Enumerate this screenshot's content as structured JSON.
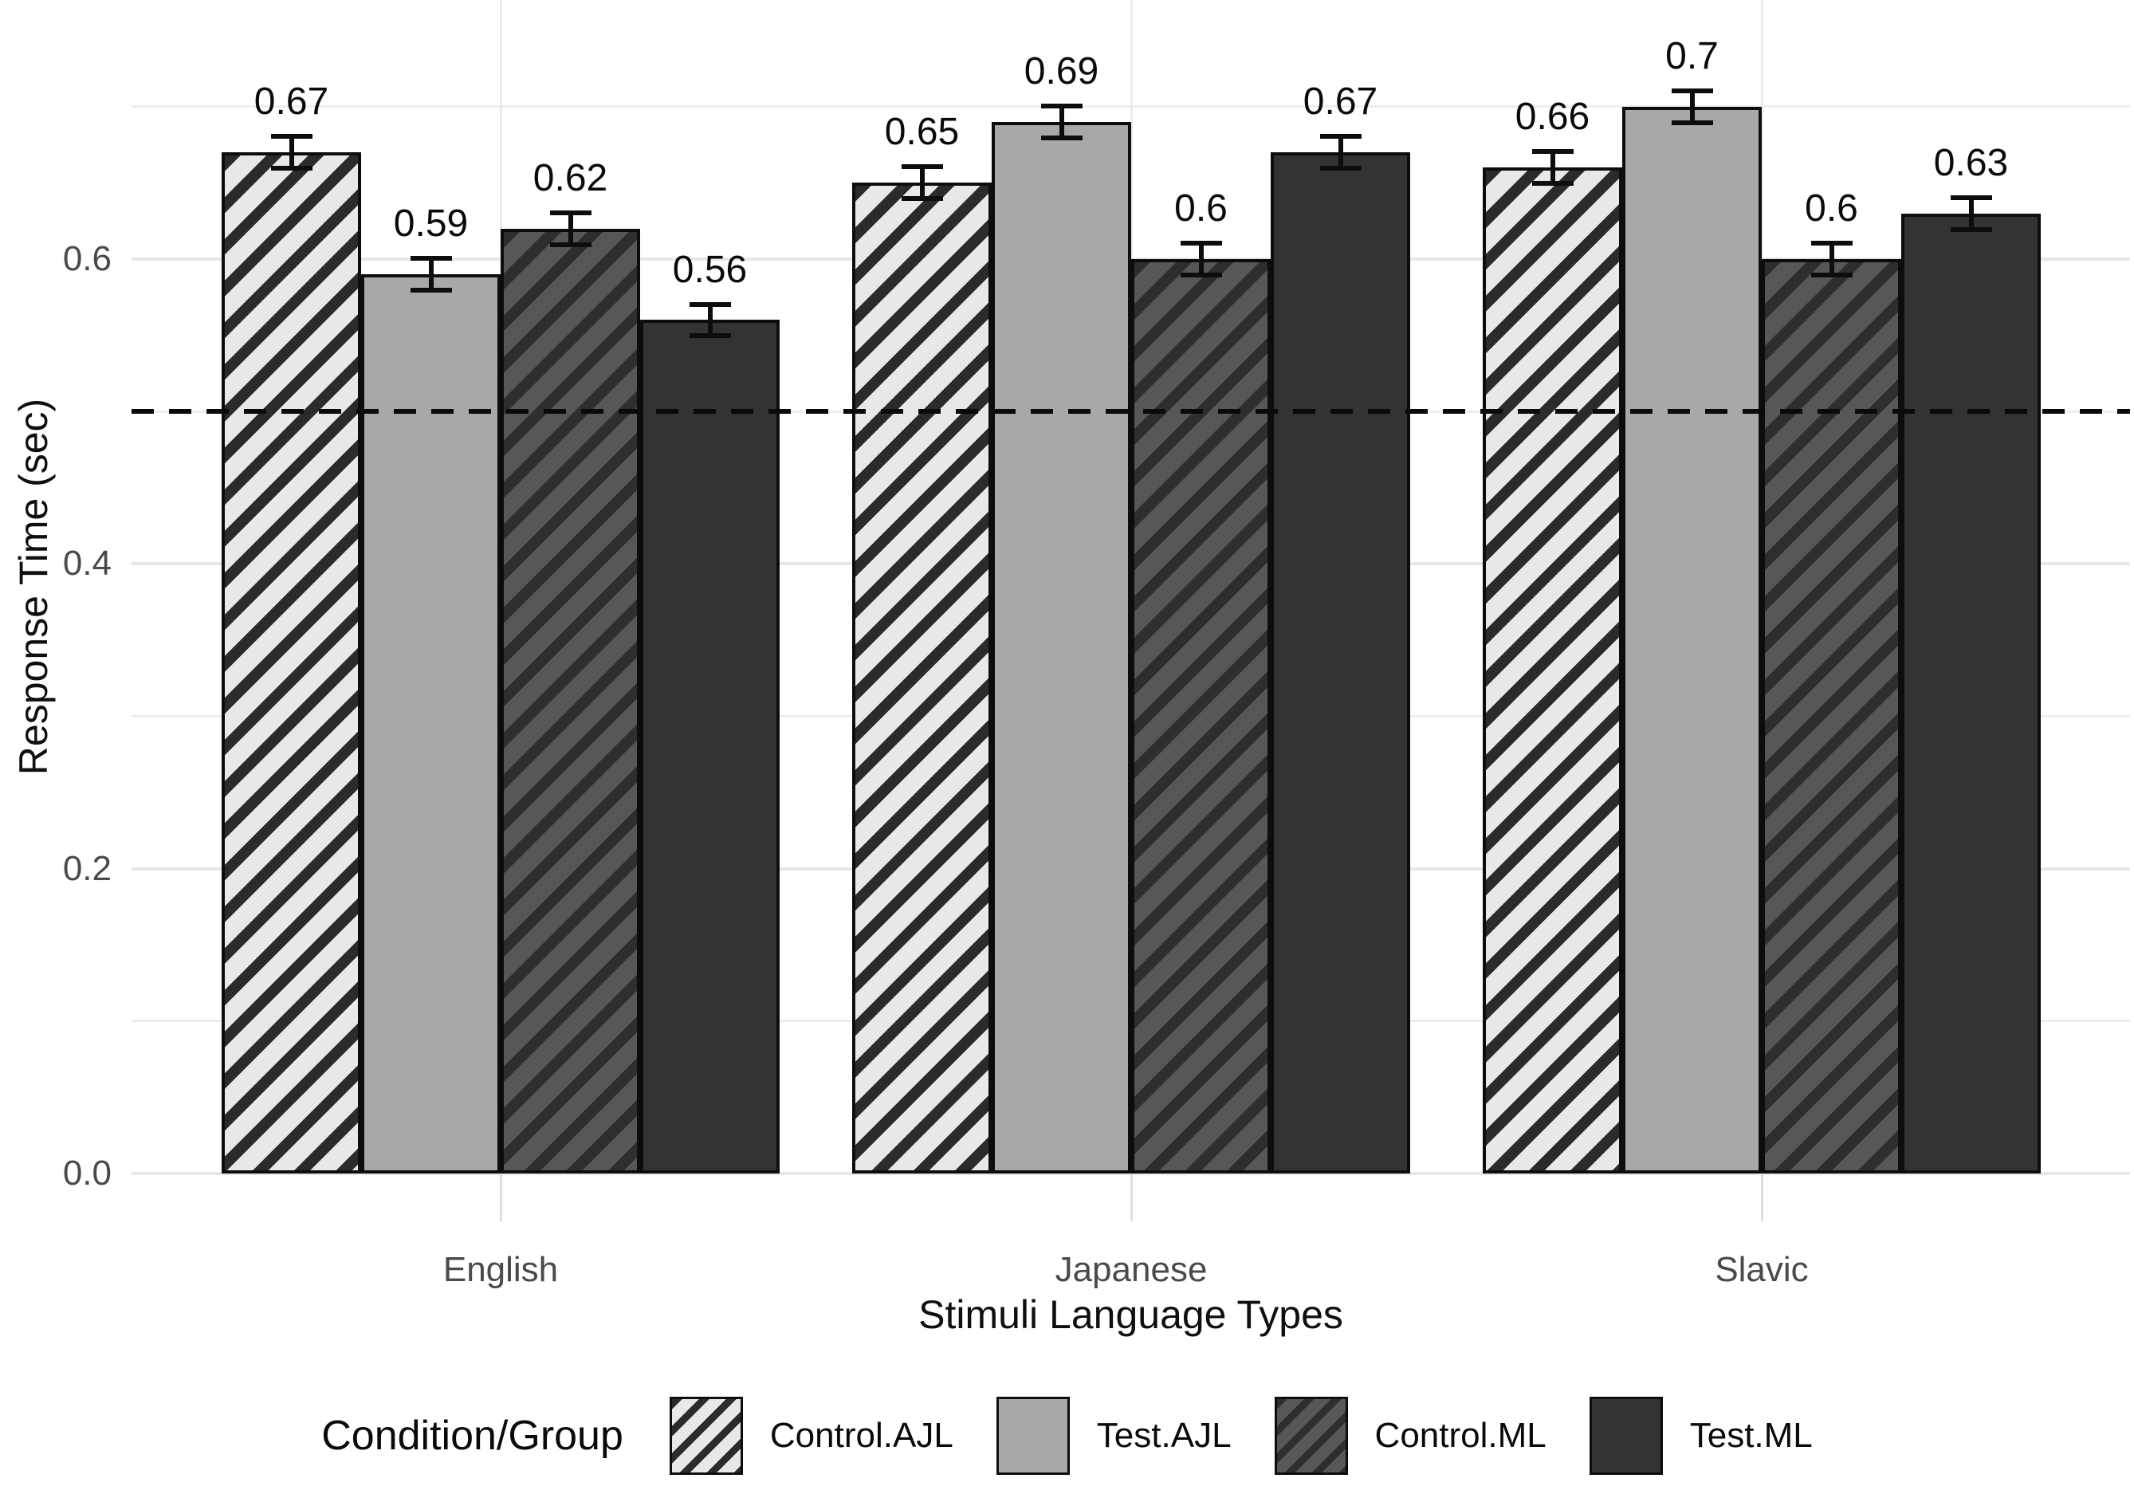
{
  "chart_data": {
    "type": "bar",
    "title": "",
    "xlabel": "Stimuli Language Types",
    "ylabel": "Response Time (sec)",
    "categories": [
      "English",
      "Japanese",
      "Slavic"
    ],
    "series": [
      {
        "name": "Control.AJL",
        "pattern": "stripe-light",
        "values": [
          0.67,
          0.65,
          0.66
        ],
        "labels": [
          "0.67",
          "0.65",
          "0.66"
        ]
      },
      {
        "name": "Test.AJL",
        "pattern": "solid-light",
        "values": [
          0.59,
          0.69,
          0.7
        ],
        "labels": [
          "0.59",
          "0.69",
          "0.7"
        ]
      },
      {
        "name": "Control.ML",
        "pattern": "stripe-dark",
        "values": [
          0.62,
          0.6,
          0.6
        ],
        "labels": [
          "0.62",
          "0.6",
          "0.6"
        ]
      },
      {
        "name": "Test.ML",
        "pattern": "solid-dark",
        "values": [
          0.56,
          0.67,
          0.63
        ],
        "labels": [
          "0.56",
          "0.67",
          "0.63"
        ]
      }
    ],
    "error_bar": 0.012,
    "reference_line": 0.5,
    "ylim": [
      0,
      0.77
    ],
    "yticks": [
      {
        "value": 0.0,
        "label": "0.0"
      },
      {
        "value": 0.2,
        "label": "0.2"
      },
      {
        "value": 0.4,
        "label": "0.4"
      },
      {
        "value": 0.6,
        "label": "0.6"
      }
    ],
    "major_gridlines": [
      0.0,
      0.2,
      0.4,
      0.6
    ],
    "minor_gridlines": [
      0.1,
      0.3,
      0.5,
      0.7
    ],
    "grid": "on",
    "legend_title": "Condition/Group",
    "legend_position": "bottom",
    "colors": {
      "control_ajl_fill": "#e8e8e8",
      "control_ajl_stripe": "#2b2b2b",
      "test_ajl_fill": "#a8a8a8",
      "control_ml_fill": "#575757",
      "control_ml_stripe": "#2e2e2e",
      "test_ml_fill": "#333333",
      "bar_border": "#0d0d0d",
      "gridline": "#e7e7e7",
      "reference_line_color": "#0a0a0a",
      "tick_label_color": "#4a4a4a"
    }
  }
}
